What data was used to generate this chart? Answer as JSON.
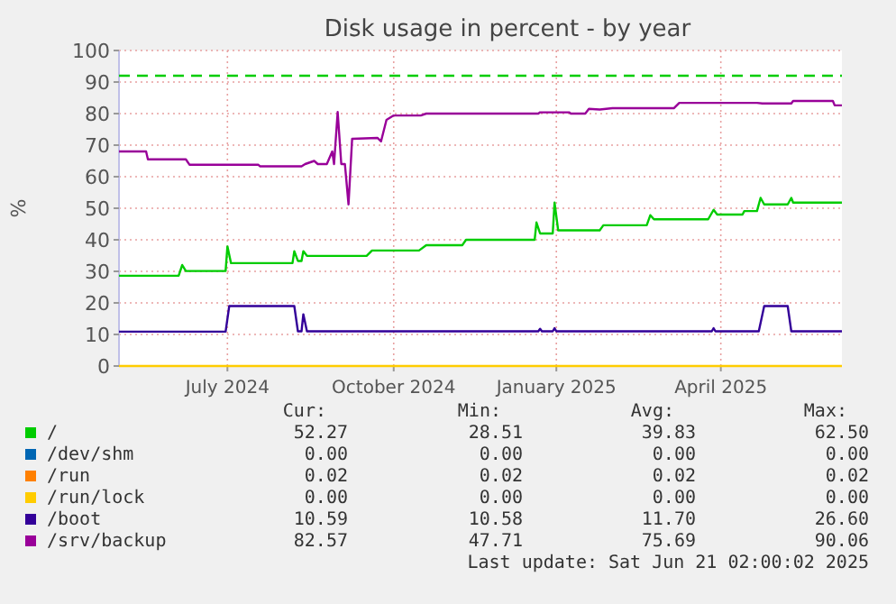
{
  "chart_data": {
    "type": "line",
    "title": "Disk usage in percent - by year",
    "ylabel": "%",
    "xlim": [
      "2024-05-17",
      "2025-06-21"
    ],
    "xticks": [
      {
        "value": "2024-07-16",
        "label": "July 2024"
      },
      {
        "value": "2024-10-16",
        "label": "October 2024"
      },
      {
        "value": "2025-01-14",
        "label": "January 2025"
      },
      {
        "value": "2025-04-15",
        "label": "April 2025"
      }
    ],
    "ylim": [
      0,
      100
    ],
    "yticks": [
      0,
      10,
      20,
      30,
      40,
      50,
      60,
      70,
      80,
      90,
      100
    ],
    "grid": true,
    "legend": "bottom",
    "line_style": "solid",
    "marker": "none",
    "series": [
      {
        "name": "/",
        "color": "#00cc00",
        "x": [
          "2024-05-17",
          "2024-06-19",
          "2024-06-21",
          "2024-06-23",
          "2024-07-15",
          "2024-07-16",
          "2024-07-18",
          "2024-08-21",
          "2024-08-22",
          "2024-08-24",
          "2024-08-26",
          "2024-08-27",
          "2024-08-29",
          "2024-10-01",
          "2024-10-04",
          "2024-10-30",
          "2024-11-03",
          "2024-11-23",
          "2024-11-25",
          "2025-01-02",
          "2025-01-03",
          "2025-01-05",
          "2025-01-12",
          "2025-01-13",
          "2025-01-15",
          "2025-02-07",
          "2025-02-09",
          "2025-03-05",
          "2025-03-07",
          "2025-03-09",
          "2025-04-08",
          "2025-04-11",
          "2025-04-13",
          "2025-04-27",
          "2025-04-28",
          "2025-05-05",
          "2025-05-07",
          "2025-05-09",
          "2025-05-22",
          "2025-05-24",
          "2025-05-25",
          "2025-06-21"
        ],
        "values": [
          28.6,
          28.6,
          32,
          30.1,
          30.1,
          37.9,
          32.6,
          32.6,
          36.4,
          33.3,
          33.3,
          36.4,
          34.9,
          34.9,
          36.6,
          36.6,
          38.3,
          38.3,
          40,
          40,
          45.5,
          42,
          42,
          51.8,
          43,
          43,
          44.6,
          44.6,
          47.8,
          46.5,
          46.5,
          49.5,
          48,
          48,
          49.1,
          49.1,
          53.3,
          51.2,
          51.2,
          53.3,
          51.8,
          51.8
        ]
      },
      {
        "name": "/dev/shm",
        "color": "#0066b3"
      },
      {
        "name": "/run",
        "color": "#ff8000"
      },
      {
        "name": "/run/lock",
        "color": "#ffcc00",
        "x": [
          "2024-05-17",
          "2025-06-21"
        ],
        "values": [
          0,
          0
        ]
      },
      {
        "name": "/boot",
        "color": "#330099",
        "x": [
          "2024-05-17",
          "2024-07-15",
          "2024-07-17",
          "2024-08-22",
          "2024-08-24",
          "2024-08-26",
          "2024-08-27",
          "2024-08-29",
          "2025-01-04",
          "2025-01-05",
          "2025-01-06",
          "2025-01-12",
          "2025-01-13",
          "2025-01-14",
          "2025-04-10",
          "2025-04-11",
          "2025-04-12",
          "2025-05-06",
          "2025-05-09",
          "2025-05-22",
          "2025-05-24",
          "2025-06-21"
        ],
        "values": [
          10.9,
          10.9,
          19,
          19,
          11,
          11,
          16.4,
          11,
          11,
          11.8,
          11,
          11,
          12,
          11,
          11,
          12,
          11,
          11,
          19,
          19,
          11,
          11
        ]
      },
      {
        "name": "/srv/backup",
        "color": "#990099",
        "x": [
          "2024-05-17",
          "2024-06-01",
          "2024-06-02",
          "2024-06-23",
          "2024-06-25",
          "2024-08-02",
          "2024-08-03",
          "2024-08-26",
          "2024-08-28",
          "2024-09-02",
          "2024-09-04",
          "2024-09-09",
          "2024-09-12",
          "2024-09-13",
          "2024-09-15",
          "2024-09-17",
          "2024-09-19",
          "2024-09-21",
          "2024-09-23",
          "2024-10-07",
          "2024-10-09",
          "2024-10-12",
          "2024-10-16",
          "2024-10-31",
          "2024-11-03",
          "2025-01-04",
          "2025-01-05",
          "2025-01-21",
          "2025-01-22",
          "2025-01-30",
          "2025-02-01",
          "2025-02-07",
          "2025-02-14",
          "2025-03-20",
          "2025-03-23",
          "2025-05-05",
          "2025-05-08",
          "2025-05-24",
          "2025-05-25",
          "2025-06-16",
          "2025-06-17",
          "2025-06-21"
        ],
        "values": [
          68,
          68,
          65.5,
          65.5,
          63.8,
          63.8,
          63.3,
          63.3,
          64,
          65,
          64,
          64,
          68,
          64,
          80.5,
          64,
          64,
          51.2,
          72,
          72.3,
          71.2,
          78,
          79.4,
          79.4,
          80,
          80,
          80.4,
          80.4,
          80,
          80,
          81.5,
          81.3,
          81.7,
          81.7,
          83.4,
          83.4,
          83.2,
          83.2,
          84,
          84,
          82.6,
          82.6
        ]
      }
    ],
    "ref_lines": [
      {
        "axis": "y",
        "value": 92,
        "color": "#00cc00",
        "line_style": "dashed"
      }
    ],
    "annotations": [
      "Cur:",
      "Min:",
      "Avg:",
      "Max:",
      "52.27",
      "28.51",
      "39.83",
      "62.50",
      "0.00",
      "0.00",
      "0.00",
      "0.00",
      "0.02",
      "0.02",
      "0.02",
      "0.02",
      "0.00",
      "0.00",
      "0.00",
      "0.00",
      "10.59",
      "10.58",
      "11.70",
      "26.60",
      "82.57",
      "47.71",
      "75.69",
      "90.06",
      "Last update: Sat Jun 21 02:00:02 2025"
    ]
  }
}
